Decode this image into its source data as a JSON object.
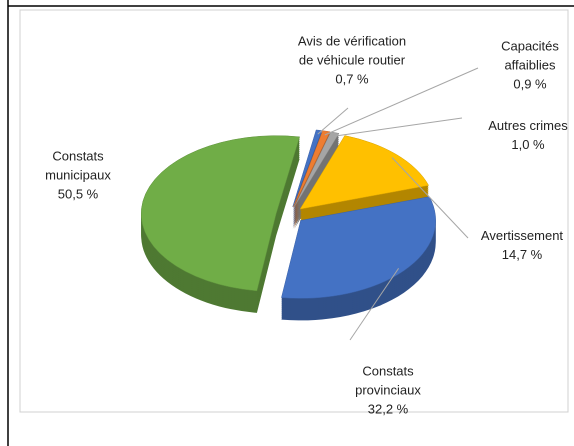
{
  "chart_data": {
    "type": "pie",
    "categories": [
      "Avis de vérification de véhicule routier",
      "Capacités affaiblies",
      "Autres crimes",
      "Avertissement",
      "Constats provinciaux",
      "Constats municipaux"
    ],
    "values": [
      0.7,
      0.9,
      1.0,
      14.7,
      32.2,
      50.5
    ],
    "value_labels": [
      "0,7 %",
      "0,9 %",
      "1,0 %",
      "14,7 %",
      "32,2 %",
      "50,5 %"
    ],
    "colors": [
      "#4472c4",
      "#ed7d31",
      "#a5a5a5",
      "#ffc000",
      "#4472c4",
      "#70ad47"
    ]
  }
}
